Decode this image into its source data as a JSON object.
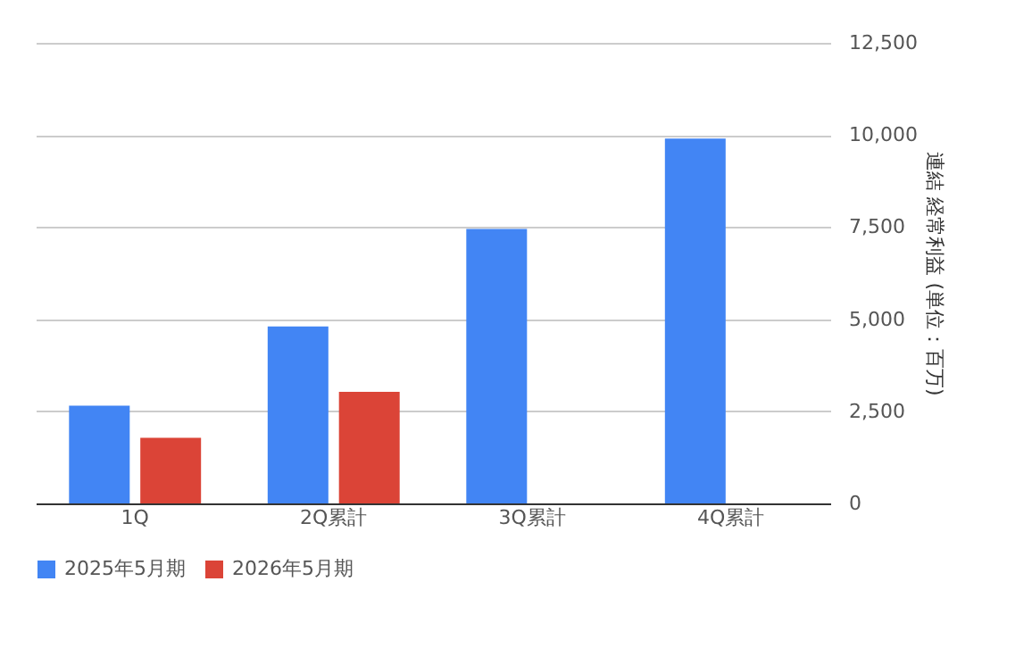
{
  "chart_data": {
    "type": "bar",
    "categories": [
      "1Q",
      "2Q累計",
      "3Q累計",
      "4Q累計"
    ],
    "series": [
      {
        "name": "2025年5月期",
        "color": "#4285f4",
        "values": [
          2650,
          4800,
          7450,
          9900
        ]
      },
      {
        "name": "2026年5月期",
        "color": "#db4437",
        "values": [
          1780,
          3030,
          null,
          null
        ]
      }
    ],
    "ylabel": "連結 経常利益 (単位：百万)",
    "ylim": [
      0,
      12500
    ],
    "yticks": [
      0,
      {
        "value": 2500,
        "label": "2,500"
      },
      {
        "value": 5000,
        "label": "5,000"
      },
      {
        "value": 7500,
        "label": "7,500"
      },
      {
        "value": 10000,
        "label": "10,000"
      },
      {
        "value": 12500,
        "label": "12,500"
      }
    ],
    "grid": "y",
    "legend": "bottom"
  }
}
